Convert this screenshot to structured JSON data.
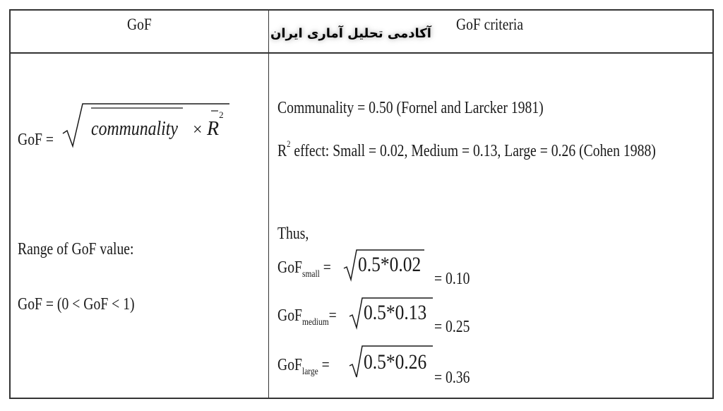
{
  "header": {
    "col1": "GoF",
    "col2": "GoF criteria",
    "watermark": "آکادمی تحلیل آماری ایران"
  },
  "left": {
    "gof_prefix": "GoF =",
    "gof_term1": "communality",
    "gof_times": "×",
    "gof_term2": "R",
    "gof_term2_sup": "2",
    "range_label": "Range of GoF value:",
    "range_formula": "GoF = (0 < GoF < 1)"
  },
  "right": {
    "communality_line": "Communality = 0.50 (Fornel and Larcker 1981)",
    "r2_prefix": "R",
    "r2_sup": "2",
    "r2_line": " effect: Small = 0.02, Medium = 0.13, Large = 0.26 (Cohen 1988)",
    "thus": "Thus,",
    "rows": [
      {
        "label": "GoF",
        "sub": "small",
        "eq": " = ",
        "radicand": "0.5*0.02",
        "result": "= 0.10"
      },
      {
        "label": "GoF",
        "sub": "medium",
        "eq": "= ",
        "radicand": "0.5*0.13",
        "result": "= 0.25"
      },
      {
        "label": "GoF",
        "sub": "large",
        "eq": " = ",
        "radicand": "0.5*0.26",
        "result": "= 0.36"
      }
    ]
  }
}
